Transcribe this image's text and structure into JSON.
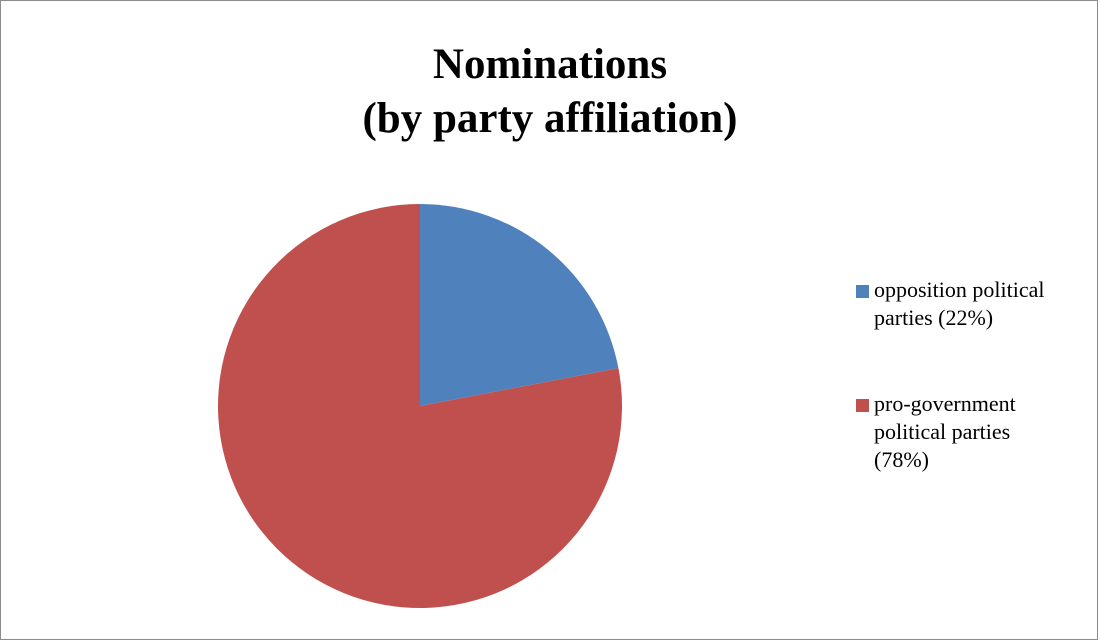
{
  "chart_data": {
    "type": "pie",
    "title_lines": [
      "Nominations",
      "(by party affiliation)"
    ],
    "categories": [
      "opposition political parties (22%)",
      "pro-government political parties (78%)"
    ],
    "values": [
      22,
      78
    ],
    "colors": [
      "#4f81bd",
      "#c0504d"
    ],
    "legend_position": "right",
    "legend": [
      {
        "label": "opposition political\nparties (22%)",
        "color": "#4f81bd"
      },
      {
        "label": "pro-government\npolitical parties\n(78%)",
        "color": "#c0504d"
      }
    ]
  }
}
